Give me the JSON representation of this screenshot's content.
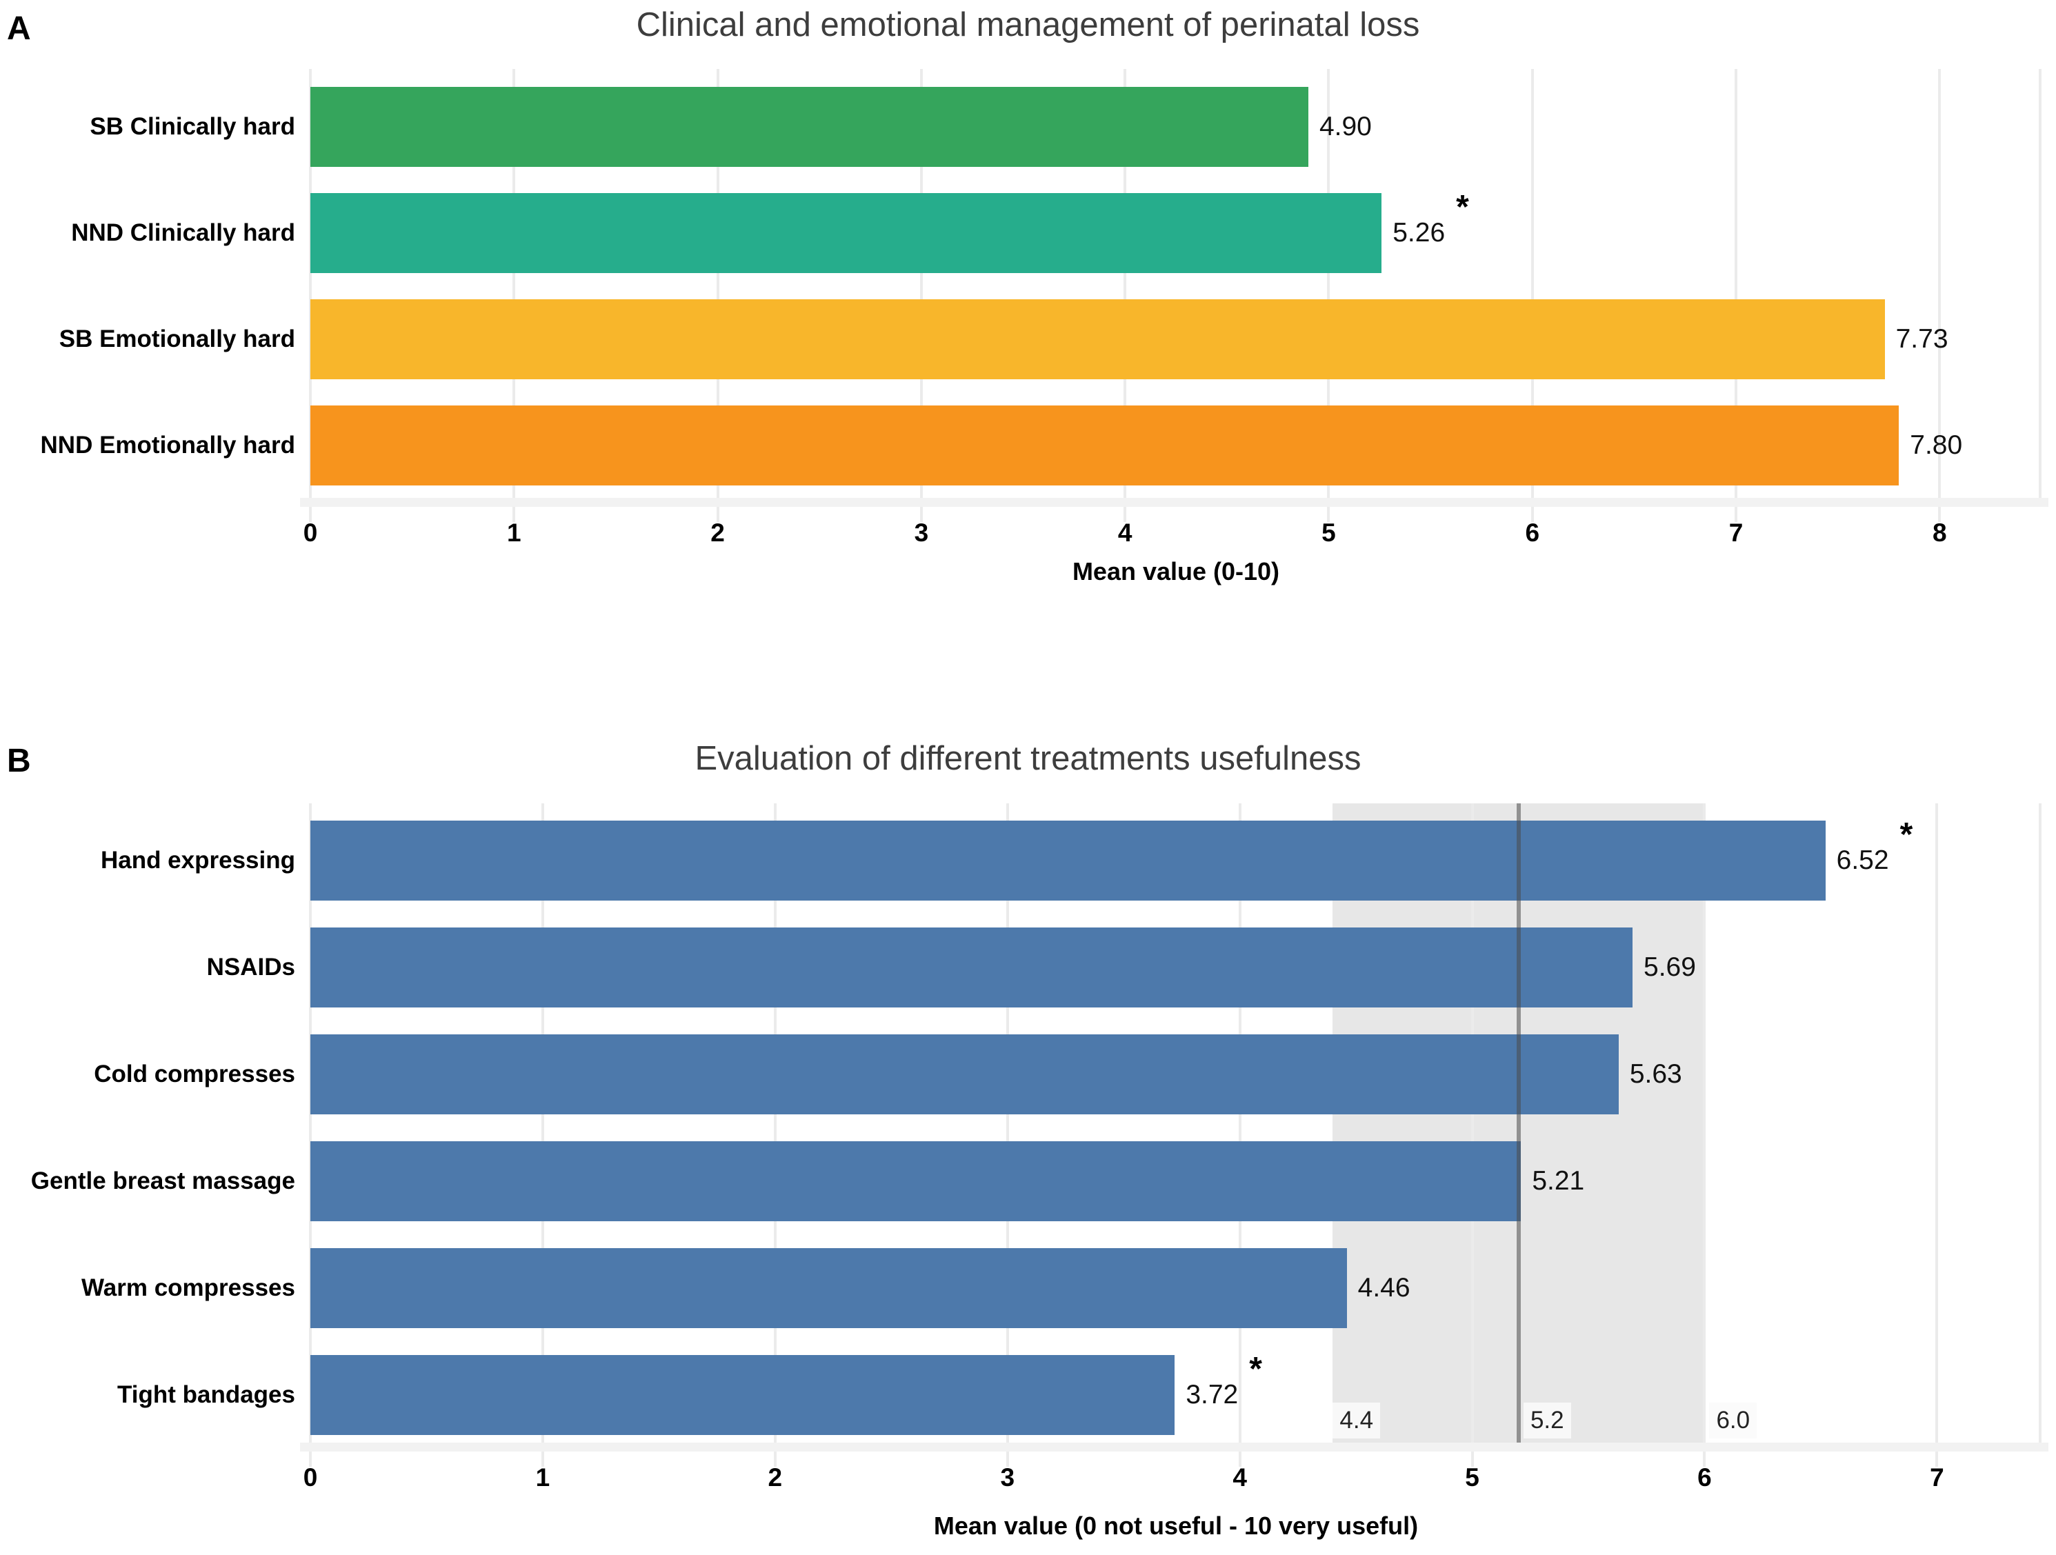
{
  "significance_marker": "*",
  "colors": {
    "grid": "#ebebeb",
    "axis_band": "#f2f2f2",
    "reference_band": "#e7e7e7",
    "reference_line": "#4a4a4a",
    "title_text": "#3d3d3d",
    "text": "#000000",
    "panel_b_bar": "#4d79ab"
  },
  "chart_data": [
    {
      "type": "bar",
      "orientation": "horizontal",
      "panel_label": "A",
      "title": "Clinical and emotional management of perinatal loss",
      "xlabel": "Mean value (0-10)",
      "categories": [
        "SB Clinically hard",
        "NND Clinically hard",
        "SB Emotionally hard",
        "NND Emotionally hard"
      ],
      "values": [
        4.9,
        5.26,
        7.73,
        7.8
      ],
      "value_labels": [
        "4.90",
        "5.26",
        "7.73",
        "7.80"
      ],
      "significant": [
        false,
        true,
        false,
        false
      ],
      "bar_colors": [
        "#35a55c",
        "#26ad8c",
        "#f8b62b",
        "#f7941d"
      ],
      "x_ticks": [
        0,
        1,
        2,
        3,
        4,
        5,
        6,
        7,
        8
      ],
      "xlim": [
        0,
        8.5
      ],
      "grid": true,
      "legend": "none"
    },
    {
      "type": "bar",
      "orientation": "horizontal",
      "panel_label": "B",
      "title": "Evaluation of different treatments usefulness",
      "xlabel": "Mean value (0 not useful - 10 very useful)",
      "categories": [
        "Hand expressing",
        "NSAIDs",
        "Cold compresses",
        "Gentle breast massage",
        "Warm compresses",
        "Tight bandages"
      ],
      "values": [
        6.52,
        5.69,
        5.63,
        5.21,
        4.46,
        3.72
      ],
      "value_labels": [
        "6.52",
        "5.69",
        "5.63",
        "5.21",
        "4.46",
        "3.72"
      ],
      "significant": [
        true,
        false,
        false,
        false,
        false,
        true
      ],
      "bar_colors": [
        "#4d79ab",
        "#4d79ab",
        "#4d79ab",
        "#4d79ab",
        "#4d79ab",
        "#4d79ab"
      ],
      "x_ticks": [
        0,
        1,
        2,
        3,
        4,
        5,
        6,
        7
      ],
      "xlim": [
        0,
        7.45
      ],
      "grid": true,
      "legend": "none",
      "reference_band": {
        "from": 4.4,
        "to": 6.0,
        "line_at": 5.2,
        "labels": [
          "4.4",
          "5.2",
          "6.0"
        ]
      }
    }
  ]
}
